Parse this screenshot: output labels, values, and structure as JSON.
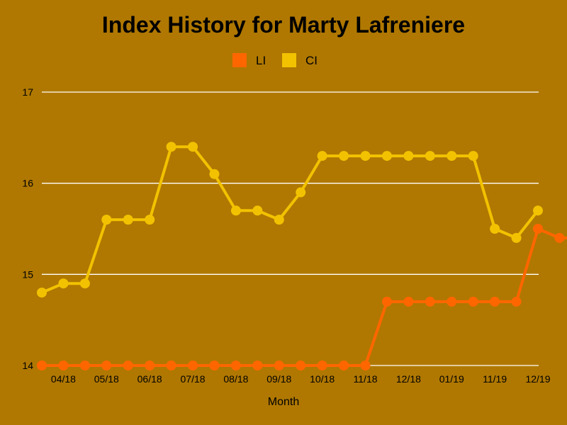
{
  "chart_data": {
    "type": "line",
    "title": "Index History for Marty Lafreniere",
    "xlabel": "Month",
    "ylabel": "",
    "ylim": [
      14,
      17
    ],
    "yticks": [
      "14",
      "15",
      "16",
      "17"
    ],
    "grid": true,
    "legend_position": "top",
    "x_tick_labels": [
      "04/18",
      "05/18",
      "06/18",
      "07/18",
      "08/18",
      "09/18",
      "10/18",
      "11/18",
      "12/18",
      "01/19",
      "11/19",
      "12/19"
    ],
    "series": [
      {
        "name": "LI",
        "color": "#ff6600",
        "values": [
          14,
          14,
          14,
          14,
          14,
          14,
          14,
          14,
          14,
          14,
          14,
          14,
          14,
          14,
          14,
          14,
          14.7,
          14.7,
          14.7,
          14.7,
          14.7,
          14.7,
          14.7,
          15.5,
          15.4,
          15.4
        ]
      },
      {
        "name": "CI",
        "color": "#f2c200",
        "values": [
          14.8,
          14.9,
          14.9,
          15.6,
          15.6,
          15.6,
          16.4,
          16.4,
          16.1,
          15.7,
          15.7,
          15.6,
          15.9,
          16.3,
          16.3,
          16.3,
          16.3,
          16.3,
          16.3,
          16.3,
          16.3,
          15.5,
          15.4,
          15.7
        ]
      }
    ]
  }
}
